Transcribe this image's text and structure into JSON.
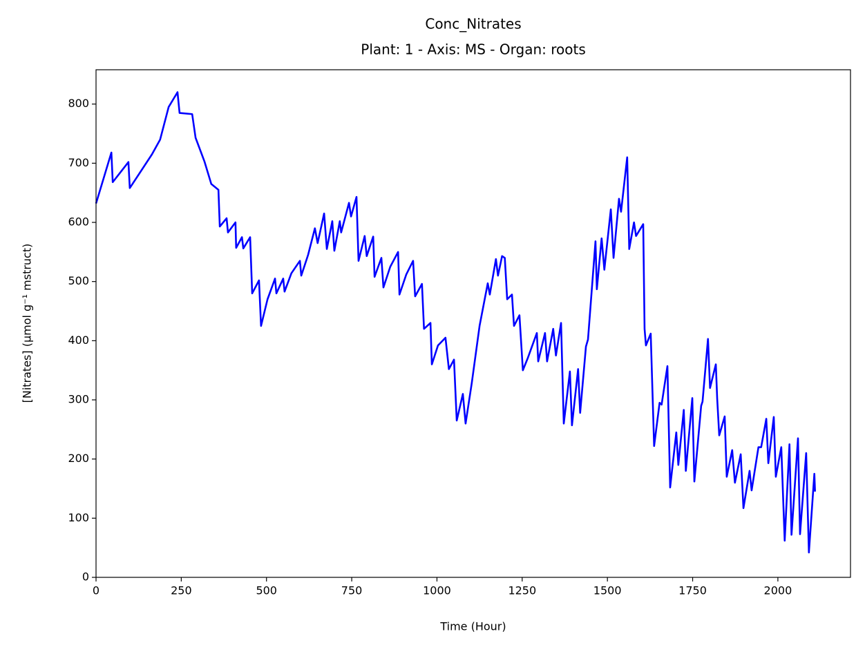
{
  "chart_data": {
    "type": "line",
    "title": "Conc_Nitrates",
    "subtitle": "Plant: 1 - Axis: MS - Organ: roots",
    "x_label": "Time (Hour)",
    "y_label": "[Nitrates] (µmol g⁻¹ mstruct)",
    "xlim": [
      0,
      2213
    ],
    "ylim": [
      0,
      858
    ],
    "xticks": [
      0,
      250,
      500,
      750,
      1000,
      1250,
      1500,
      1750,
      2000
    ],
    "yticks": [
      0,
      100,
      200,
      300,
      400,
      500,
      600,
      700,
      800
    ],
    "grid": false,
    "series": [
      {
        "color": "#0000ff",
        "x": [
          0,
          45,
          49,
          95,
          99,
          164,
          188,
          213,
          239,
          245,
          282,
          292,
          318,
          338,
          359,
          363,
          383,
          387,
          409,
          411,
          428,
          432,
          452,
          458,
          478,
          484,
          503,
          525,
          529,
          549,
          553,
          573,
          598,
          602,
          622,
          642,
          650,
          669,
          677,
          693,
          699,
          715,
          719,
          742,
          748,
          764,
          770,
          788,
          794,
          813,
          817,
          837,
          843,
          863,
          886,
          890,
          910,
          930,
          936,
          956,
          962,
          981,
          985,
          1003,
          1025,
          1035,
          1050,
          1058,
          1076,
          1084,
          1102,
          1125,
          1149,
          1155,
          1173,
          1179,
          1191,
          1199,
          1206,
          1220,
          1226,
          1242,
          1252,
          1266,
          1293,
          1297,
          1317,
          1323,
          1341,
          1349,
          1364,
          1372,
          1390,
          1396,
          1414,
          1420,
          1437,
          1443,
          1465,
          1469,
          1483,
          1491,
          1510,
          1518,
          1534,
          1540,
          1558,
          1564,
          1578,
          1584,
          1605,
          1609,
          1613,
          1627,
          1637,
          1653,
          1659,
          1676,
          1684,
          1702,
          1708,
          1724,
          1730,
          1749,
          1755,
          1775,
          1779,
          1795,
          1801,
          1818,
          1822,
          1828,
          1844,
          1850,
          1866,
          1874,
          1891,
          1899,
          1917,
          1923,
          1943,
          1951,
          1966,
          1972,
          1988,
          1994,
          2010,
          2020,
          2034,
          2040,
          2059,
          2065,
          2083,
          2091,
          2107,
          2109
        ],
        "values": [
          632,
          718,
          668,
          702,
          658,
          715,
          740,
          795,
          820,
          785,
          783,
          743,
          703,
          665,
          655,
          593,
          607,
          583,
          600,
          557,
          575,
          556,
          575,
          480,
          502,
          425,
          470,
          505,
          480,
          505,
          483,
          514,
          535,
          510,
          545,
          590,
          565,
          615,
          555,
          602,
          552,
          602,
          583,
          633,
          610,
          643,
          535,
          577,
          543,
          576,
          508,
          540,
          490,
          525,
          550,
          478,
          512,
          535,
          475,
          496,
          420,
          430,
          360,
          392,
          405,
          352,
          368,
          265,
          310,
          260,
          328,
          425,
          497,
          478,
          538,
          510,
          543,
          540,
          470,
          478,
          425,
          443,
          350,
          370,
          413,
          365,
          413,
          365,
          420,
          375,
          430,
          260,
          348,
          257,
          352,
          278,
          390,
          402,
          568,
          487,
          573,
          520,
          622,
          540,
          640,
          618,
          710,
          555,
          600,
          577,
          597,
          420,
          392,
          412,
          222,
          295,
          292,
          357,
          152,
          245,
          190,
          283,
          180,
          303,
          162,
          290,
          297,
          403,
          320,
          360,
          302,
          240,
          272,
          170,
          215,
          160,
          208,
          117,
          180,
          147,
          220,
          220,
          268,
          193,
          271,
          170,
          220,
          62,
          225,
          72,
          235,
          73,
          210,
          42,
          175,
          145
        ]
      }
    ]
  }
}
